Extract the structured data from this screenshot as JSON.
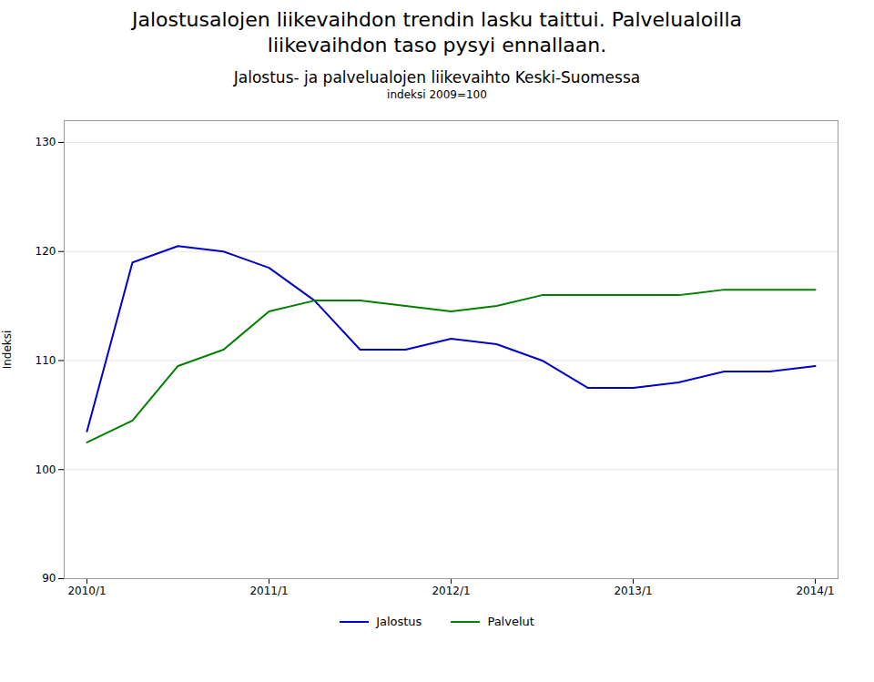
{
  "chart_data": {
    "type": "line",
    "suptitle": [
      "Jalostusalojen liikevaihdon trendin lasku taittui. Palvelualoilla",
      "liikevaihdon taso pysyi ennallaan."
    ],
    "title": "Jalostus- ja palvelualojen liikevaihto Keski-Suomessa",
    "subtitle": "indeksi 2009=100",
    "ylabel": "Indeksi",
    "categories": [
      "2010/1",
      null,
      null,
      null,
      "2011/1",
      null,
      null,
      null,
      "2012/1",
      null,
      null,
      null,
      "2013/1",
      null,
      null,
      null,
      "2014/1"
    ],
    "series": [
      {
        "name": "Jalostus",
        "color": "#0000CC",
        "values": [
          103.5,
          119.0,
          120.5,
          120.0,
          118.5,
          115.5,
          111.0,
          111.0,
          112.0,
          111.5,
          110.0,
          107.5,
          107.5,
          108.0,
          109.0,
          109.0,
          109.5
        ]
      },
      {
        "name": "Palvelut",
        "color": "#008000",
        "values": [
          102.5,
          104.5,
          109.5,
          111.0,
          114.5,
          115.5,
          115.5,
          115.0,
          114.5,
          115.0,
          116.0,
          116.0,
          116.0,
          116.0,
          116.5,
          116.5,
          116.5
        ]
      }
    ],
    "ylim": [
      90,
      132
    ],
    "yticks": [
      90,
      100,
      110,
      120,
      130
    ],
    "grid": "y",
    "legend": "bottom"
  }
}
